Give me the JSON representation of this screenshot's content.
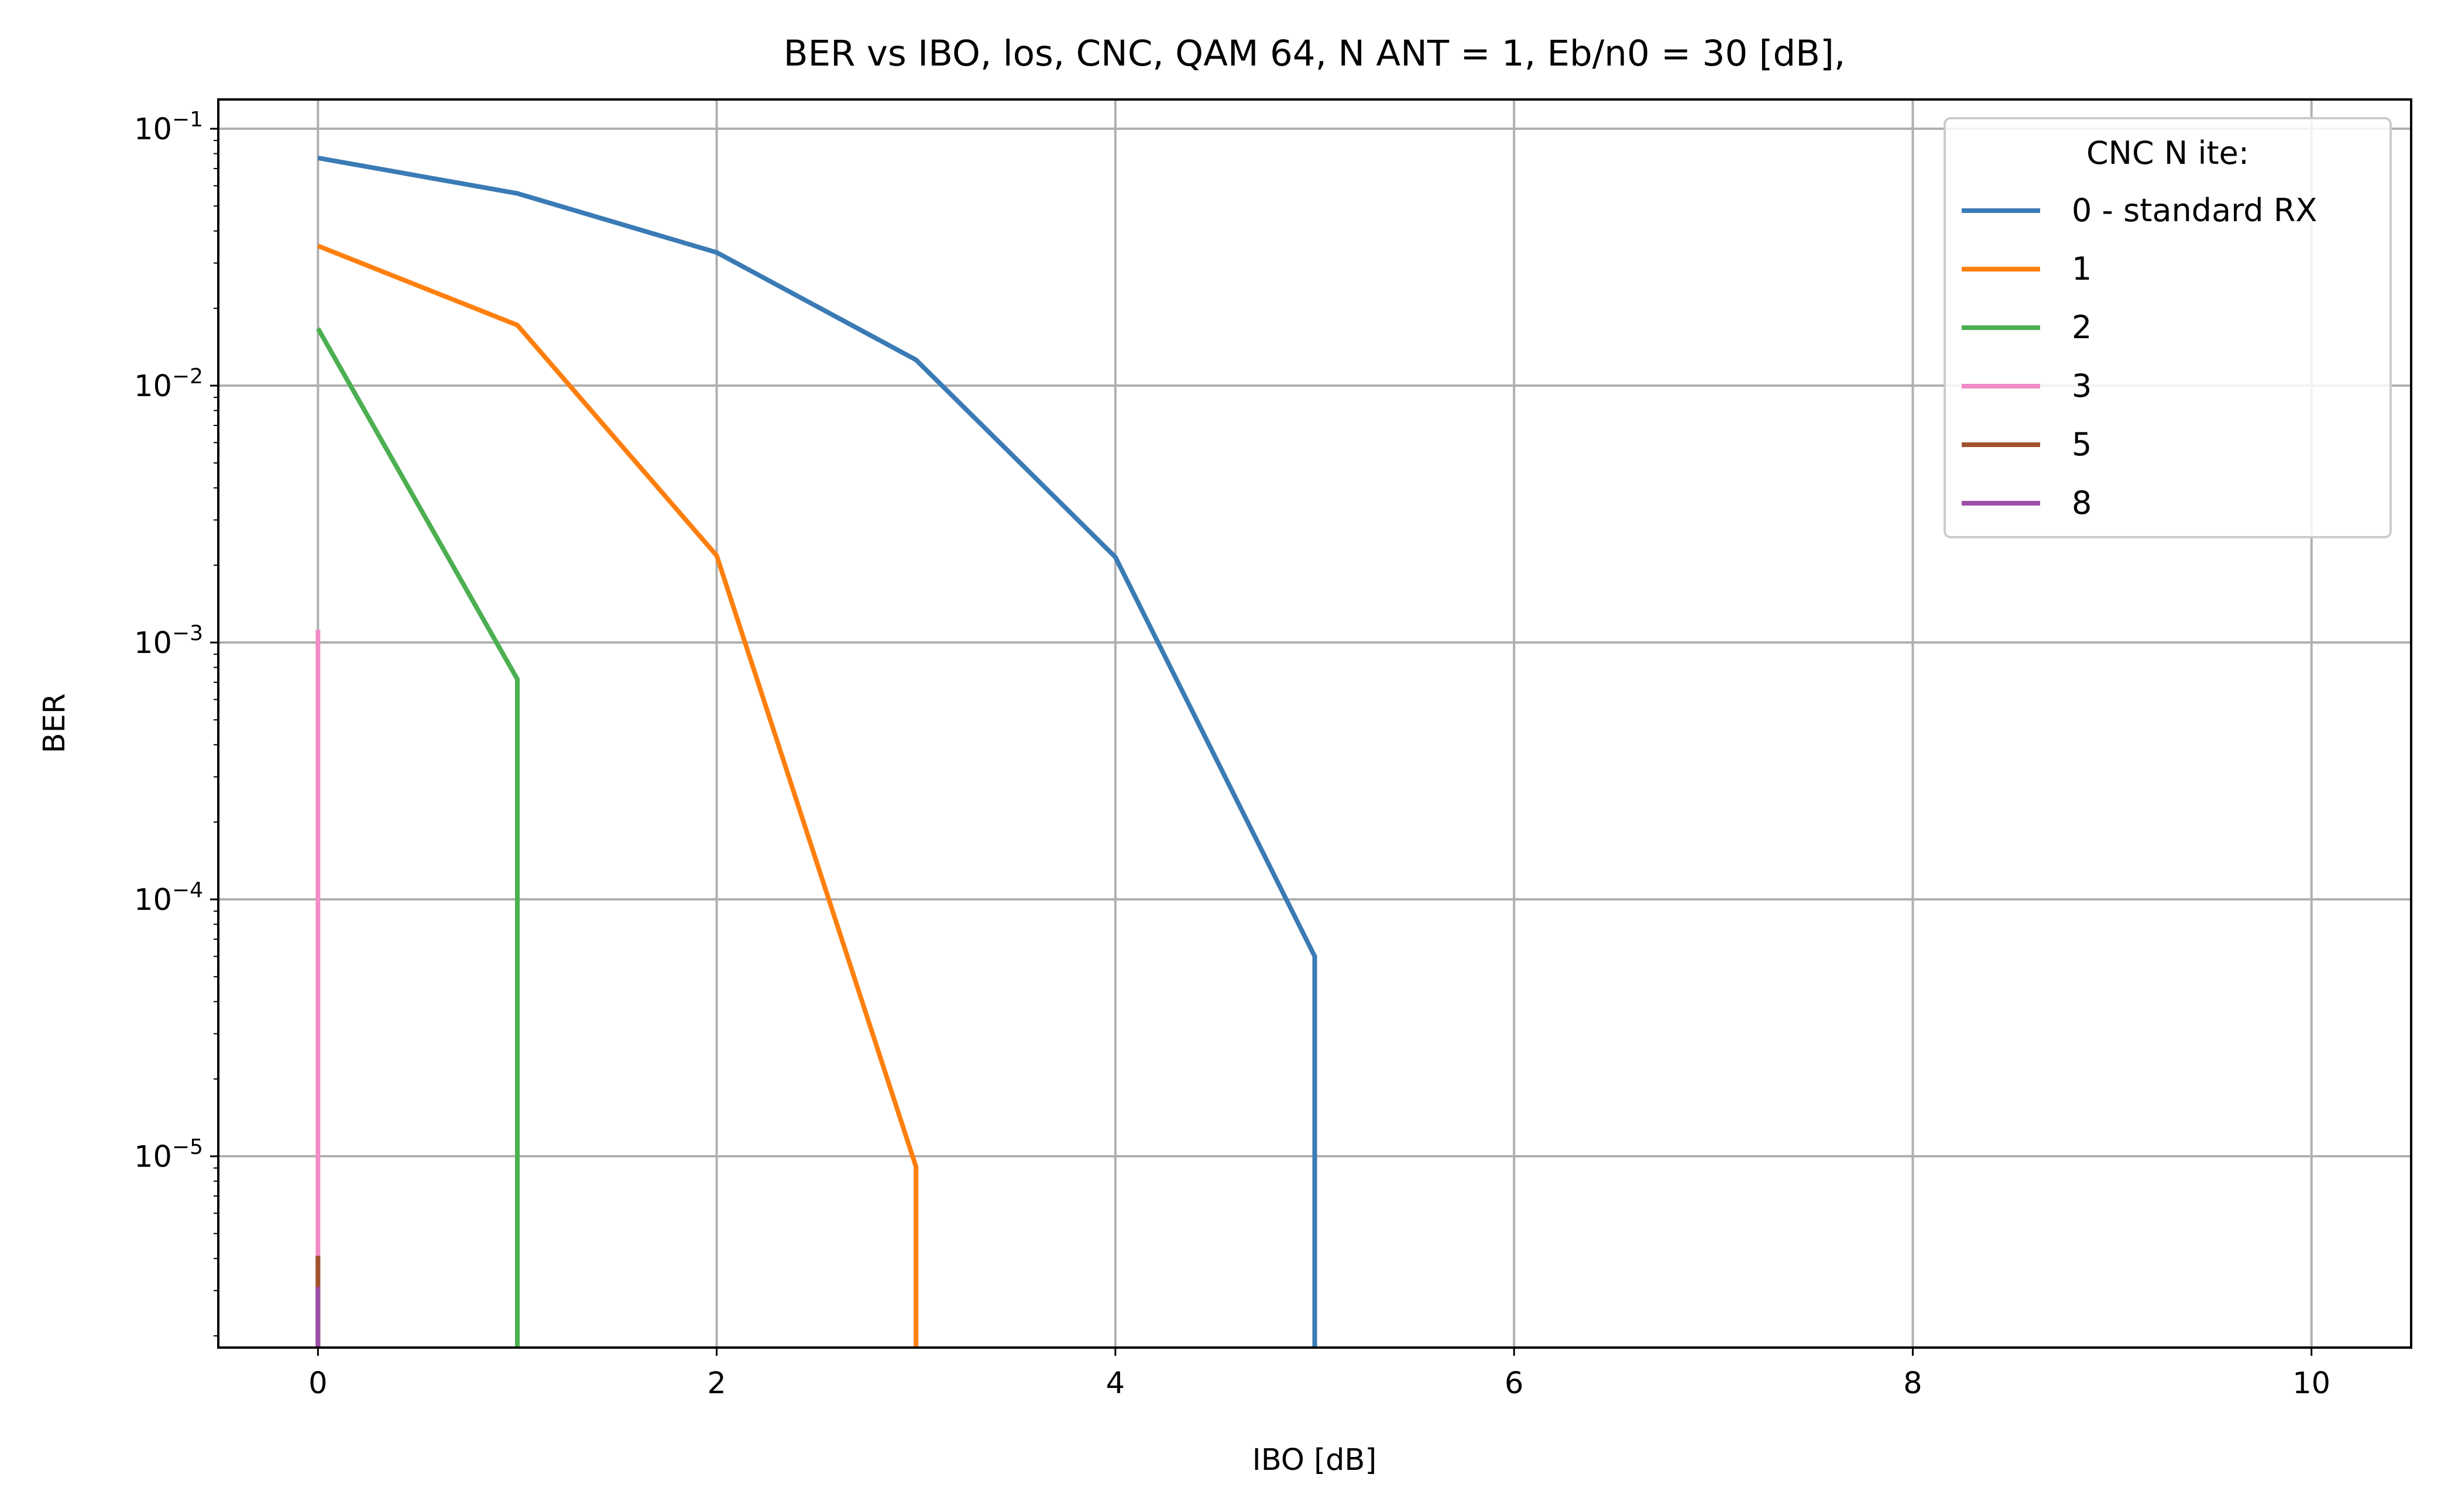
{
  "chart_data": {
    "type": "line",
    "title": "BER vs IBO, los, CNC, QAM 64, N ANT = 1, Eb/n0 = 30 [dB],",
    "xlabel": "IBO [dB]",
    "ylabel": "BER",
    "xscale": "linear",
    "yscale": "log",
    "xlim": [
      -0.5,
      10.5
    ],
    "ylim": [
      1.8e-06,
      0.13
    ],
    "xticks": [
      0,
      2,
      4,
      6,
      8,
      10
    ],
    "xtick_labels": [
      "0",
      "2",
      "4",
      "6",
      "8",
      "10"
    ],
    "yticks": [
      1e-05,
      0.0001,
      0.001,
      0.01,
      0.1
    ],
    "ytick_labels": [
      {
        "base": "10",
        "exp": "−5"
      },
      {
        "base": "10",
        "exp": "−4"
      },
      {
        "base": "10",
        "exp": "−3"
      },
      {
        "base": "10",
        "exp": "−2"
      },
      {
        "base": "10",
        "exp": "−1"
      }
    ],
    "grid": true,
    "legend": {
      "title": "CNC N ite:",
      "placement": "top-right"
    },
    "series": [
      {
        "name": "0 - standard RX",
        "color": "#3a7bb5",
        "x": [
          0,
          1,
          2,
          3,
          4,
          5,
          5
        ],
        "y": [
          0.077,
          0.056,
          0.033,
          0.0126,
          0.00215,
          6e-05,
          1.8e-06
        ]
      },
      {
        "name": "1",
        "color": "#ff7f0e",
        "x": [
          0,
          1,
          2,
          3,
          3
        ],
        "y": [
          0.035,
          0.0172,
          0.00218,
          9.1e-06,
          1.8e-06
        ]
      },
      {
        "name": "2",
        "color": "#4caf50",
        "x": [
          0,
          1,
          1
        ],
        "y": [
          0.0167,
          0.00072,
          1.8e-06
        ]
      },
      {
        "name": "3",
        "color": "#f08cc8",
        "x": [
          0,
          0
        ],
        "y": [
          0.00112,
          1.8e-06
        ]
      },
      {
        "name": "5",
        "color": "#a0522d",
        "x": [
          0,
          0
        ],
        "y": [
          4.1e-06,
          1.8e-06
        ]
      },
      {
        "name": "8",
        "color": "#9b4fa5",
        "x": [
          0,
          0
        ],
        "y": [
          3.1e-06,
          1.8e-06
        ]
      }
    ]
  }
}
